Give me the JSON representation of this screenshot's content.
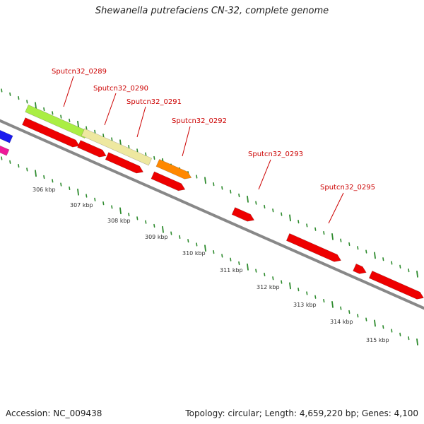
{
  "title": "Shewanella putrefaciens CN-32, complete genome",
  "footer": {
    "accession": "Accession: NC_009438",
    "summary": "Topology: circular; Length: 4,659,220 bp; Genes: 4,100"
  },
  "colors": {
    "backbone": "#888888",
    "tick": "#2e8b2e",
    "cds": "#ee0000",
    "gene_lime": "#aaee44",
    "gene_pale": "#eee8a0",
    "gene_orange": "#ff8800",
    "gene_blue": "#1a1aee",
    "gene_pink": "#ee1a99",
    "label": "#cc0000"
  },
  "ruler": {
    "tick_labels": [
      "306 kbp",
      "307 kbp",
      "308 kbp",
      "309 kbp",
      "310 kbp",
      "311 kbp",
      "312 kbp",
      "313 kbp",
      "314 kbp",
      "315 kbp"
    ]
  },
  "gene_labels": [
    "Sputcn32_0289",
    "Sputcn32_0290",
    "Sputcn32_0291",
    "Sputcn32_0292",
    "Sputcn32_0293",
    "Sputcn32_0295"
  ]
}
